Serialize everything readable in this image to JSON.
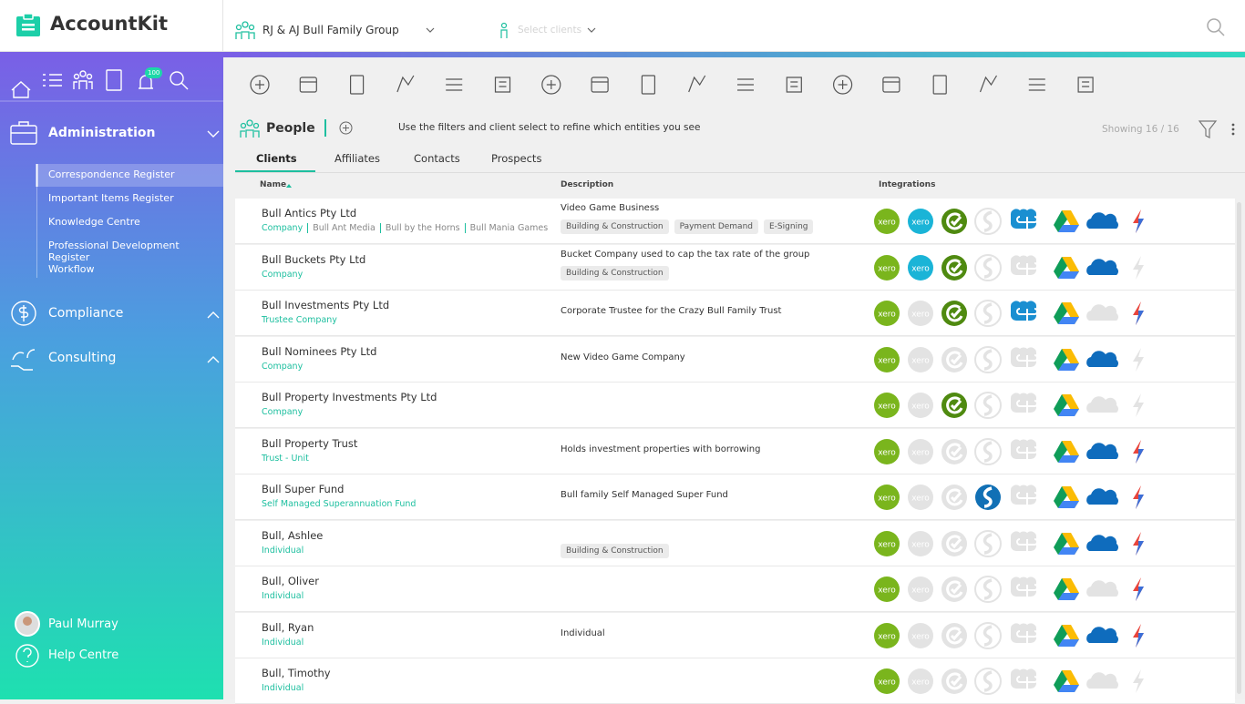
{
  "app": {
    "name": "AccountKit"
  },
  "header": {
    "group": "RJ & AJ Bull Family Group",
    "client_select": "Select clients"
  },
  "sidebar": {
    "badge": "100",
    "sections": [
      {
        "title": "Administration",
        "items": [
          "Correspondence Register",
          "Important Items Register",
          "Knowledge Centre",
          "Professional Development Register",
          "Workflow"
        ]
      },
      {
        "title": "Compliance"
      },
      {
        "title": "Consulting"
      }
    ],
    "user": "Paul Murray",
    "help": "Help Centre"
  },
  "page": {
    "title": "People",
    "hint": "Use the filters and client select to refine which entities you see",
    "showing": "Showing 16 / 16",
    "tabs": [
      "Clients",
      "Affiliates",
      "Contacts",
      "Prospects"
    ],
    "active_tab": "Clients",
    "columns": [
      "Name",
      "Description",
      "Integrations"
    ],
    "xero_label": "xero"
  },
  "table": {
    "rows": [
      {
        "name": "Bull Antics Pty Ltd",
        "type": "Company",
        "affiliates": [
          "Bull Ant Media",
          "Bull by the Horns",
          "Bull Mania Games"
        ],
        "description": "Video Game Business",
        "tags": [
          "Building & Construction",
          "Payment Demand",
          "E-Signing"
        ],
        "integrations": [
          true,
          true,
          true,
          false,
          true,
          true,
          true,
          true
        ]
      },
      {
        "name": "Bull Buckets Pty Ltd",
        "type": "Company",
        "description": "Bucket Company used to cap the tax rate of the group",
        "tags": [
          "Building & Construction"
        ],
        "integrations": [
          true,
          true,
          true,
          false,
          false,
          true,
          true,
          false
        ]
      },
      {
        "name": "Bull Investments Pty Ltd",
        "type": "Trustee Company",
        "description": "Corporate Trustee for the Crazy Bull Family Trust",
        "integrations": [
          true,
          false,
          true,
          false,
          true,
          true,
          false,
          true
        ]
      },
      {
        "name": "Bull Nominees Pty Ltd",
        "type": "Company",
        "description": "New Video Game Company",
        "integrations": [
          true,
          false,
          false,
          false,
          false,
          true,
          true,
          false
        ]
      },
      {
        "name": "Bull Property Investments Pty Ltd",
        "type": "Company",
        "integrations": [
          true,
          false,
          true,
          false,
          false,
          true,
          false,
          false
        ]
      },
      {
        "name": "Bull Property Trust",
        "type": "Trust - Unit",
        "description": "Holds investment properties with borrowing",
        "integrations": [
          true,
          false,
          false,
          false,
          false,
          true,
          true,
          true
        ]
      },
      {
        "name": "Bull Super Fund",
        "type": "Self Managed Superannuation Fund",
        "description": "Bull family Self Managed Super Fund",
        "integrations": [
          true,
          false,
          false,
          true,
          false,
          true,
          true,
          true
        ]
      },
      {
        "name": "Bull, Ashlee",
        "type": "Individual",
        "tags": [
          "Building & Construction"
        ],
        "integrations": [
          true,
          false,
          false,
          false,
          false,
          true,
          true,
          true
        ]
      },
      {
        "name": "Bull, Oliver",
        "type": "Individual",
        "integrations": [
          true,
          false,
          false,
          false,
          false,
          true,
          false,
          true
        ]
      },
      {
        "name": "Bull, Ryan",
        "type": "Individual",
        "description": "Individual",
        "integrations": [
          true,
          false,
          false,
          false,
          false,
          true,
          true,
          true
        ]
      },
      {
        "name": "Bull, Timothy",
        "type": "Individual",
        "integrations": [
          true,
          false,
          false,
          false,
          false,
          true,
          false,
          false
        ]
      }
    ]
  }
}
